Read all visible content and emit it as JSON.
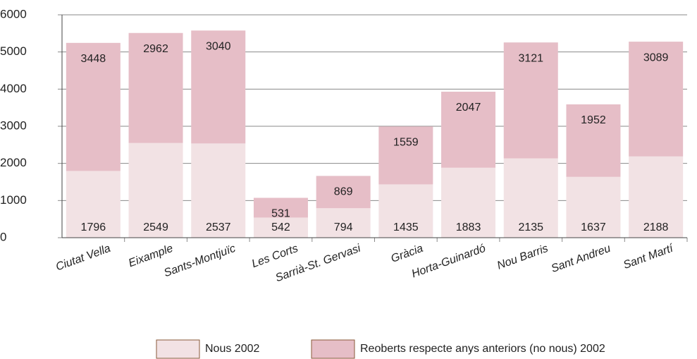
{
  "chart_data": {
    "type": "stacked_bar",
    "categories": [
      "Ciutat Vella",
      "Eixample",
      "Sants-Montjuïc",
      "Les Corts",
      "Sarrià-St. Gervasi",
      "Gràcia",
      "Horta-Guinardó",
      "Nou Barris",
      "Sant Andreu",
      "Sant Martí"
    ],
    "series": [
      {
        "name": "Nous 2002",
        "color": "#f2e2e4",
        "values": [
          1796,
          2549,
          2537,
          542,
          794,
          1435,
          1883,
          2135,
          1637,
          2188
        ]
      },
      {
        "name": "Reoberts respecte anys anteriors (no nous) 2002",
        "color": "#e6bec7",
        "values": [
          3448,
          2962,
          3040,
          531,
          869,
          1559,
          2047,
          3121,
          1952,
          3089
        ]
      }
    ],
    "ylim": [
      0,
      6000
    ],
    "yticks": [
      0,
      1000,
      2000,
      3000,
      4000,
      5000,
      6000
    ],
    "grid": true
  }
}
